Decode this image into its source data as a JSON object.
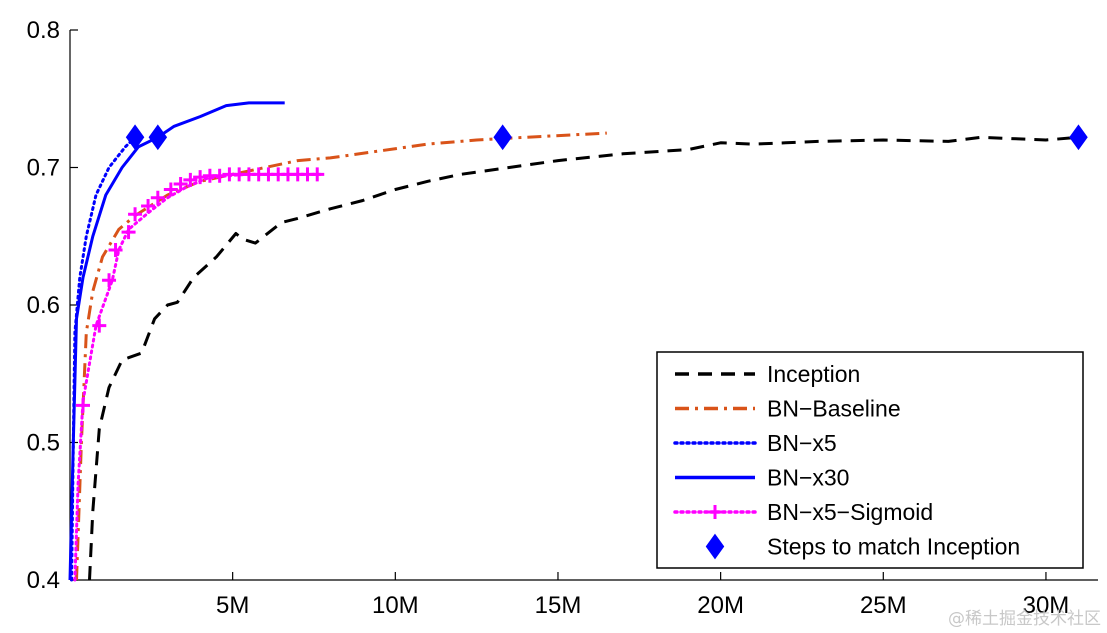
{
  "chart_data": {
    "type": "line",
    "title": "",
    "xlabel": "",
    "ylabel": "",
    "xlim": [
      0,
      31600000
    ],
    "ylim": [
      0.4,
      0.8
    ],
    "xticks": [
      {
        "value": 5000000,
        "label": "5M"
      },
      {
        "value": 10000000,
        "label": "10M"
      },
      {
        "value": 15000000,
        "label": "15M"
      },
      {
        "value": 20000000,
        "label": "20M"
      },
      {
        "value": 25000000,
        "label": "25M"
      },
      {
        "value": 30000000,
        "label": "30M"
      }
    ],
    "yticks": [
      {
        "value": 0.4,
        "label": "0.4"
      },
      {
        "value": 0.5,
        "label": "0.5"
      },
      {
        "value": 0.6,
        "label": "0.6"
      },
      {
        "value": 0.7,
        "label": "0.7"
      },
      {
        "value": 0.8,
        "label": "0.8"
      }
    ],
    "grid": false,
    "legend_position": "bottom-right",
    "series": [
      {
        "name": "Inception",
        "color": "#000000",
        "style": "dashed",
        "points": [
          [
            600000,
            0.4
          ],
          [
            700000,
            0.45
          ],
          [
            900000,
            0.51
          ],
          [
            1200000,
            0.54
          ],
          [
            1600000,
            0.56
          ],
          [
            2200000,
            0.565
          ],
          [
            2600000,
            0.59
          ],
          [
            3000000,
            0.6
          ],
          [
            3300000,
            0.602
          ],
          [
            3800000,
            0.62
          ],
          [
            4500000,
            0.635
          ],
          [
            5100000,
            0.652
          ],
          [
            5300000,
            0.648
          ],
          [
            5700000,
            0.645
          ],
          [
            6500000,
            0.66
          ],
          [
            7000000,
            0.663
          ],
          [
            8000000,
            0.67
          ],
          [
            9000000,
            0.676
          ],
          [
            10000000,
            0.684
          ],
          [
            11000000,
            0.69
          ],
          [
            12000000,
            0.695
          ],
          [
            13500000,
            0.7
          ],
          [
            15000000,
            0.705
          ],
          [
            17000000,
            0.71
          ],
          [
            19000000,
            0.713
          ],
          [
            20000000,
            0.718
          ],
          [
            21000000,
            0.717
          ],
          [
            22000000,
            0.718
          ],
          [
            23000000,
            0.719
          ],
          [
            25000000,
            0.72
          ],
          [
            27000000,
            0.719
          ],
          [
            28000000,
            0.722
          ],
          [
            30000000,
            0.72
          ],
          [
            31000000,
            0.722
          ]
        ]
      },
      {
        "name": "BN−Baseline",
        "color": "#d95319",
        "style": "dashdot",
        "points": [
          [
            200000,
            0.4
          ],
          [
            350000,
            0.5
          ],
          [
            500000,
            0.58
          ],
          [
            700000,
            0.61
          ],
          [
            1000000,
            0.635
          ],
          [
            1500000,
            0.655
          ],
          [
            2000000,
            0.665
          ],
          [
            3000000,
            0.68
          ],
          [
            4000000,
            0.69
          ],
          [
            5000000,
            0.695
          ],
          [
            6000000,
            0.7
          ],
          [
            7000000,
            0.705
          ],
          [
            8000000,
            0.707
          ],
          [
            9500000,
            0.712
          ],
          [
            11000000,
            0.717
          ],
          [
            12500000,
            0.72
          ],
          [
            14000000,
            0.722
          ],
          [
            16500000,
            0.725
          ]
        ]
      },
      {
        "name": "BN−x5",
        "color": "#0000ff",
        "style": "dotted",
        "points": [
          [
            50000,
            0.4
          ],
          [
            100000,
            0.5
          ],
          [
            150000,
            0.58
          ],
          [
            300000,
            0.62
          ],
          [
            500000,
            0.65
          ],
          [
            800000,
            0.68
          ],
          [
            1200000,
            0.7
          ],
          [
            1700000,
            0.715
          ],
          [
            2000000,
            0.722
          ]
        ]
      },
      {
        "name": "BN−x30",
        "color": "#0000ff",
        "style": "solid",
        "points": [
          [
            0,
            0.4
          ],
          [
            100000,
            0.5
          ],
          [
            200000,
            0.59
          ],
          [
            400000,
            0.62
          ],
          [
            700000,
            0.65
          ],
          [
            1100000,
            0.68
          ],
          [
            1600000,
            0.7
          ],
          [
            2100000,
            0.715
          ],
          [
            2700000,
            0.722
          ],
          [
            3200000,
            0.73
          ],
          [
            4000000,
            0.737
          ],
          [
            4800000,
            0.745
          ],
          [
            5500000,
            0.747
          ],
          [
            6600000,
            0.747
          ]
        ]
      },
      {
        "name": "BN−x5−Sigmoid",
        "color": "#ff00ff",
        "style": "dotted",
        "marker": "plus",
        "points": [
          [
            150000,
            0.4
          ],
          [
            250000,
            0.47
          ],
          [
            400000,
            0.53
          ],
          [
            800000,
            0.585
          ],
          [
            1300000,
            0.618
          ],
          [
            1500000,
            0.64
          ],
          [
            1800000,
            0.655
          ],
          [
            2400000,
            0.667
          ],
          [
            3000000,
            0.678
          ],
          [
            3600000,
            0.686
          ],
          [
            4200000,
            0.692
          ],
          [
            4800000,
            0.694
          ],
          [
            5400000,
            0.695
          ],
          [
            6000000,
            0.695
          ],
          [
            7000000,
            0.695
          ],
          [
            7700000,
            0.695
          ]
        ],
        "marker_points": [
          [
            400000,
            0.527
          ],
          [
            900000,
            0.585
          ],
          [
            1200000,
            0.618
          ],
          [
            1400000,
            0.64
          ],
          [
            1800000,
            0.653
          ],
          [
            2000000,
            0.666
          ],
          [
            2400000,
            0.672
          ],
          [
            2700000,
            0.678
          ],
          [
            3100000,
            0.684
          ],
          [
            3400000,
            0.688
          ],
          [
            3700000,
            0.691
          ],
          [
            4000000,
            0.693
          ],
          [
            4300000,
            0.694
          ],
          [
            4600000,
            0.694
          ],
          [
            4900000,
            0.695
          ],
          [
            5200000,
            0.695
          ],
          [
            5500000,
            0.695
          ],
          [
            5800000,
            0.695
          ],
          [
            6100000,
            0.695
          ],
          [
            6400000,
            0.695
          ],
          [
            6700000,
            0.695
          ],
          [
            7000000,
            0.695
          ],
          [
            7300000,
            0.695
          ],
          [
            7600000,
            0.695
          ]
        ]
      },
      {
        "name": "Steps to match Inception",
        "color": "#0000ff",
        "style": "none",
        "marker": "diamond",
        "marker_points": [
          [
            2000000,
            0.722
          ],
          [
            2700000,
            0.722
          ],
          [
            13300000,
            0.722
          ],
          [
            31000000,
            0.722
          ]
        ]
      }
    ]
  },
  "watermark": "@稀土掘金技术社区"
}
